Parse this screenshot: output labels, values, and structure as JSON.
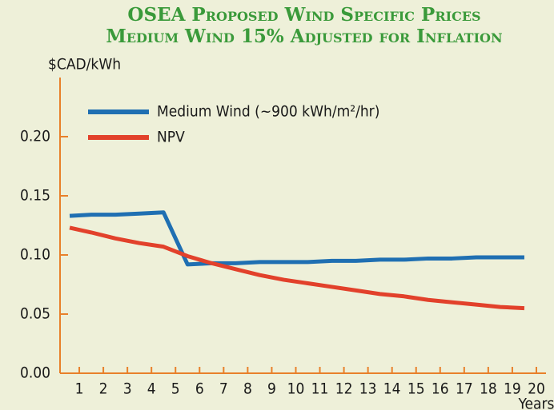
{
  "chart_data": {
    "type": "line",
    "title": [
      "OSEA Proposed Wind Specific Prices",
      "Medium Wind 15% Adjusted for Inflation"
    ],
    "ylabel": "$CAD/kWh",
    "xlabel": "Years",
    "x": [
      0.6,
      1.5,
      2.5,
      3.5,
      4.5,
      5.5,
      6.5,
      7.5,
      8.5,
      9.5,
      10.5,
      11.5,
      12.5,
      13.5,
      14.5,
      15.5,
      16.5,
      17.5,
      18.5,
      19.5
    ],
    "series": [
      {
        "name": "Medium Wind (~900 kWh/m²/hr)",
        "color": "#1f6fb2",
        "values": [
          0.133,
          0.134,
          0.134,
          0.135,
          0.136,
          0.092,
          0.093,
          0.093,
          0.094,
          0.094,
          0.094,
          0.095,
          0.095,
          0.096,
          0.096,
          0.097,
          0.097,
          0.098,
          0.098,
          0.098
        ]
      },
      {
        "name": "NPV",
        "color": "#e2412b",
        "values": [
          0.123,
          0.119,
          0.114,
          0.11,
          0.107,
          0.099,
          0.093,
          0.088,
          0.083,
          0.079,
          0.076,
          0.073,
          0.07,
          0.067,
          0.065,
          0.062,
          0.06,
          0.058,
          0.056,
          0.055
        ]
      }
    ],
    "xlim": [
      0.2,
      20.4
    ],
    "xticks": [
      1,
      2,
      3,
      4,
      5,
      6,
      7,
      8,
      9,
      10,
      11,
      12,
      13,
      14,
      15,
      16,
      17,
      18,
      19,
      20
    ],
    "ylim": [
      0,
      0.25
    ],
    "yticks": [
      {
        "value": 0,
        "label": "0.00"
      },
      {
        "value": 0.05,
        "label": "0.05"
      },
      {
        "value": 0.1,
        "label": "0.10"
      },
      {
        "value": 0.15,
        "label": "0.15"
      },
      {
        "value": 0.2,
        "label": "0.20"
      }
    ]
  }
}
